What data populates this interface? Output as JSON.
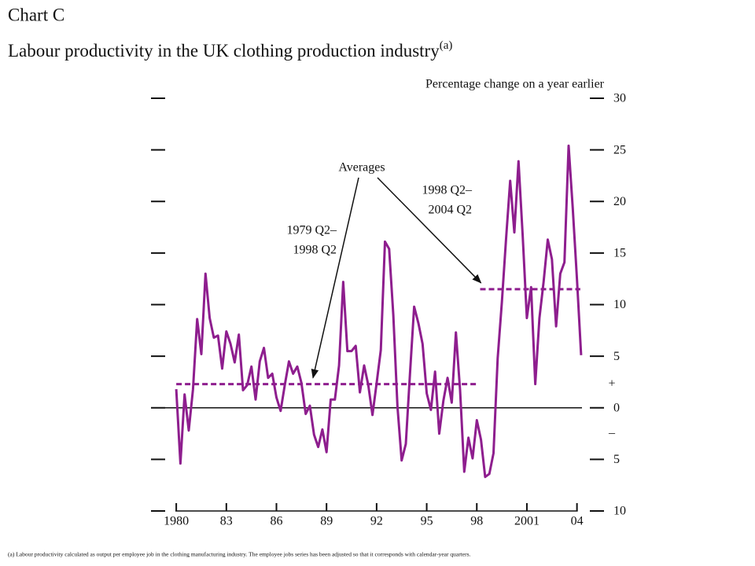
{
  "chart_data": {
    "type": "line",
    "title": "Chart C",
    "subtitle": "Labour productivity in the UK clothing production industry",
    "subtitle_note": "(a)",
    "y_axis_label": "Percentage change on a year earlier",
    "footnote": "(a)  Labour productivity calculated as output per employee job in the clothing manufacturing industry.  The employee jobs series has been adjusted so that it corresponds with calendar-year quarters.",
    "sign_labels": [
      "+",
      "–"
    ],
    "xlim": [
      1979.9,
      2004.3
    ],
    "xticks": [
      {
        "value": 1980,
        "label": "1980"
      },
      {
        "value": 1983,
        "label": "83"
      },
      {
        "value": 1986,
        "label": "86"
      },
      {
        "value": 1989,
        "label": "89"
      },
      {
        "value": 1992,
        "label": "92"
      },
      {
        "value": 1995,
        "label": "95"
      },
      {
        "value": 1998,
        "label": "98"
      },
      {
        "value": 2001,
        "label": "2001"
      },
      {
        "value": 2004,
        "label": "04"
      }
    ],
    "ylim": [
      -10,
      30
    ],
    "yticks": [
      30,
      25,
      20,
      15,
      10,
      5,
      0,
      {
        "value": -5,
        "label": "5"
      },
      {
        "value": -10,
        "label": "10"
      }
    ],
    "x": [
      1980,
      1980.25,
      1980.5,
      1980.75,
      1981,
      1981.25,
      1981.5,
      1981.75,
      1982,
      1982.25,
      1982.5,
      1982.75,
      1983,
      1983.25,
      1983.5,
      1983.75,
      1984,
      1984.25,
      1984.5,
      1984.75,
      1985,
      1985.25,
      1985.5,
      1985.75,
      1986,
      1986.25,
      1986.5,
      1986.75,
      1987,
      1987.25,
      1987.5,
      1987.75,
      1988,
      1988.25,
      1988.5,
      1988.75,
      1989,
      1989.25,
      1989.5,
      1989.75,
      1990,
      1990.25,
      1990.5,
      1990.75,
      1991,
      1991.25,
      1991.5,
      1991.75,
      1992,
      1992.25,
      1992.5,
      1992.75,
      1993,
      1993.25,
      1993.5,
      1993.75,
      1994,
      1994.25,
      1994.5,
      1994.75,
      1995,
      1995.25,
      1995.5,
      1995.75,
      1996,
      1996.25,
      1996.5,
      1996.75,
      1997,
      1997.25,
      1997.5,
      1997.75,
      1998,
      1998.25,
      1998.5,
      1998.75,
      1999,
      1999.25,
      1999.5,
      1999.75,
      2000,
      2000.25,
      2000.5,
      2000.75,
      2001,
      2001.25,
      2001.5,
      2001.75,
      2002,
      2002.25,
      2002.5,
      2002.75,
      2003,
      2003.25,
      2003.5,
      2003.75,
      2004,
      2004.25
    ],
    "series": [
      {
        "color": "#8e1e8e",
        "values": [
          1.8,
          -5.4,
          1.3,
          -2.2,
          1.8,
          8.6,
          5.2,
          13.0,
          8.7,
          6.8,
          7.0,
          3.8,
          7.4,
          6.2,
          4.4,
          7.1,
          1.7,
          2.2,
          4.0,
          0.8,
          4.5,
          5.8,
          2.9,
          3.3,
          1.0,
          -0.3,
          2.2,
          4.5,
          3.3,
          4.0,
          2.4,
          -0.6,
          0.2,
          -2.6,
          -3.8,
          -2.1,
          -4.3,
          0.8,
          0.8,
          4.1,
          12.2,
          5.5,
          5.5,
          6.0,
          1.5,
          4.1,
          2.2,
          -0.7,
          2.4,
          5.6,
          16.1,
          15.4,
          9.0,
          0.1,
          -5.1,
          -3.5,
          3.3,
          9.8,
          8.2,
          6.2,
          1.4,
          -0.2,
          3.5,
          -2.5,
          0.7,
          2.9,
          0.5,
          7.3,
          1.7,
          -6.2,
          -2.9,
          -4.9,
          -1.2,
          -3.1,
          -6.7,
          -6.4,
          -4.4,
          4.8,
          10.2,
          16.3,
          22.0,
          17.0,
          23.9,
          16.7,
          8.7,
          11.7,
          2.3,
          8.7,
          12.2,
          16.3,
          14.4,
          7.9,
          13.0,
          14.1,
          25.4,
          19.3,
          12.5,
          5.1
        ]
      }
    ],
    "averages_label": "Averages",
    "averages": [
      {
        "label": [
          "1979 Q2–",
          "1998 Q2"
        ],
        "value": 2.3,
        "x": [
          1980,
          1998
        ]
      },
      {
        "label": [
          "1998 Q2–",
          "2004 Q2"
        ],
        "value": 11.5,
        "x": [
          1998.2,
          2004.2
        ]
      }
    ]
  }
}
